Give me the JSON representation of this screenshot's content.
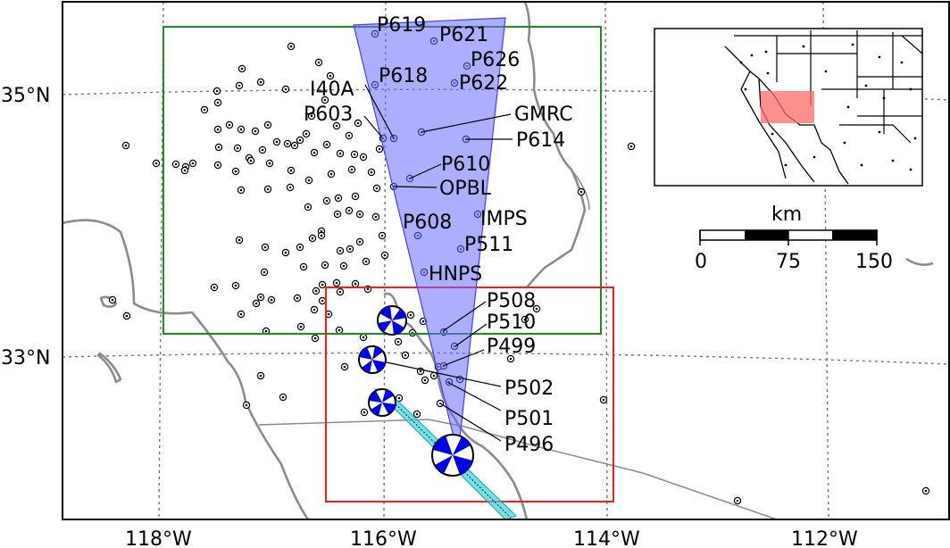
{
  "axes": {
    "x_ticks": [
      "118°W",
      "116°W",
      "114°W",
      "112°W"
    ],
    "y_ticks": [
      "35°N",
      "33°N"
    ]
  },
  "scale_bar": {
    "unit": "km",
    "labels": [
      "0",
      "75",
      "150"
    ]
  },
  "stations": [
    "P619",
    "P621",
    "P626",
    "P622",
    "P618",
    "I40A",
    "P603",
    "GMRC",
    "P614",
    "P610",
    "OPBL",
    "P608",
    "IMPS",
    "P511",
    "HNPS",
    "P508",
    "P510",
    "P499",
    "P502",
    "P501",
    "P496"
  ],
  "boxes": {
    "green_color": "#228b22",
    "red_color": "#ff1a1a"
  },
  "colors": {
    "wedge": "#6b6bff",
    "fault": "#3fd3d3",
    "mechanism": "#0000e6"
  }
}
